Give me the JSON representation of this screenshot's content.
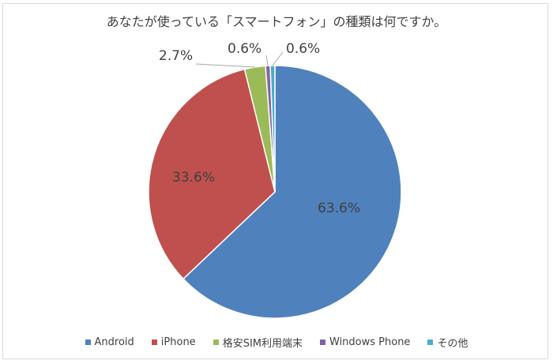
{
  "chart_data": {
    "type": "pie",
    "title": "あなたが使っている「スマートフォン」の種類は何ですか。",
    "categories": [
      "Android",
      "iPhone",
      "格安SIM利用端末",
      "Windows Phone",
      "その他"
    ],
    "values": [
      63.6,
      33.6,
      2.7,
      0.6,
      0.6
    ],
    "labels": [
      "63.6%",
      "33.6%",
      "2.7%",
      "0.6%",
      "0.6%"
    ],
    "colors": [
      "#4F81BD",
      "#C0504D",
      "#9BBB59",
      "#8064A2",
      "#4BACC6"
    ],
    "start_angle": "top (12 o'clock), clockwise",
    "legend_position": "bottom"
  },
  "legend": [
    {
      "label": "Android",
      "color": "#4F81BD"
    },
    {
      "label": "iPhone",
      "color": "#C0504D"
    },
    {
      "label": "格安SIM利用端末",
      "color": "#9BBB59"
    },
    {
      "label": "Windows Phone",
      "color": "#8064A2"
    },
    {
      "label": "その他",
      "color": "#4BACC6"
    }
  ]
}
